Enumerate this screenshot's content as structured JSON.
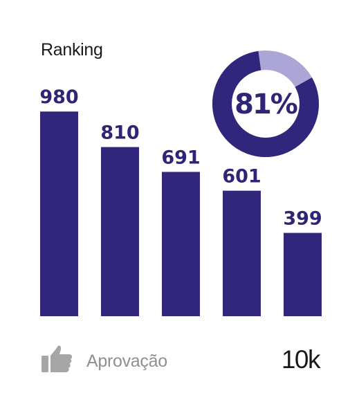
{
  "chart_data": {
    "type": "bar",
    "title": "Ranking",
    "categories": [
      "",
      "",
      "",
      "",
      ""
    ],
    "values": [
      980,
      810,
      691,
      601,
      399
    ],
    "data_labels": [
      "980",
      "810",
      "691",
      "601",
      "399"
    ],
    "ylim": [
      0,
      1100
    ],
    "grid": false,
    "colors": {
      "bar": "#30267b",
      "donut_main": "#30267b",
      "donut_rest": "#aca6d6"
    },
    "donut": {
      "value": 81,
      "label": "81%"
    }
  },
  "footer": {
    "icon": "thumbs-up-icon",
    "label": "Aprovação",
    "value": "10k"
  }
}
